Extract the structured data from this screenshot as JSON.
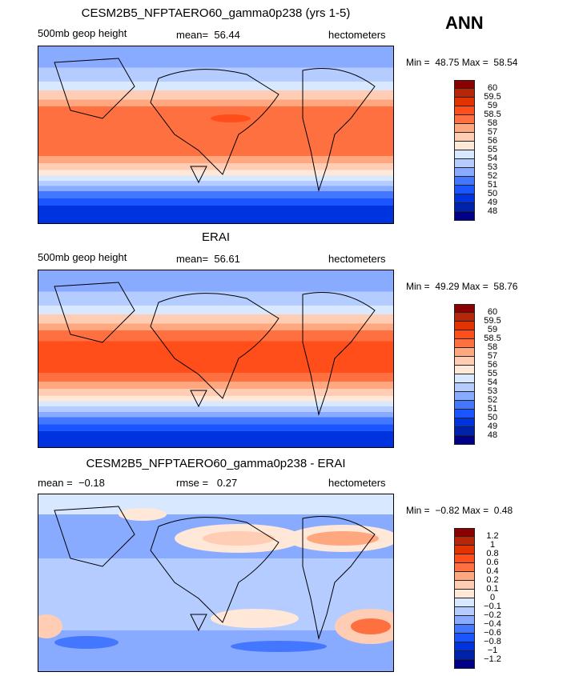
{
  "season": "ANN",
  "panels": [
    {
      "title": "CESM2B5_NFPTAERO60_gamma0p238 (yrs 1-5)",
      "left": "500mb geop height",
      "center": "mean=  56.44",
      "right": "hectometers",
      "min_label": "Min =",
      "min": "48.75",
      "max_label": "Max =",
      "max": "58.54"
    },
    {
      "title": "ERAI",
      "left": "500mb geop height",
      "center": "mean=  56.61",
      "right": "hectometers",
      "min_label": "Min =",
      "min": "49.29",
      "max_label": "Max =",
      "max": "58.76"
    },
    {
      "title": "CESM2B5_NFPTAERO60_gamma0p238 - ERAI",
      "left": "mean =  −0.18",
      "center": "rmse =   0.27",
      "right": "hectometers",
      "min_label": "Min =",
      "min": "−0.82",
      "max_label": "Max =",
      "max": "0.48"
    }
  ],
  "colorbar_colors": [
    "#8b0000",
    "#b8260a",
    "#e23400",
    "#ff4e1a",
    "#ff7040",
    "#ffa880",
    "#ffccb4",
    "#ffe8d8",
    "#d8e8ff",
    "#b4ccff",
    "#88aaff",
    "#4477ff",
    "#1a55ff",
    "#0033e0",
    "#0022aa",
    "#000088"
  ],
  "colorbar_labels_abs": [
    "60",
    "59.5",
    "59",
    "58.5",
    "58",
    "57",
    "56",
    "55",
    "54",
    "53",
    "52",
    "51",
    "50",
    "49",
    "48"
  ],
  "colorbar_labels_diff": [
    "1.2",
    "1",
    "0.8",
    "0.6",
    "0.4",
    "0.2",
    "0.1",
    "0",
    "−0.1",
    "−0.2",
    "−0.4",
    "−0.6",
    "−0.8",
    "−1",
    "−1.2"
  ]
}
